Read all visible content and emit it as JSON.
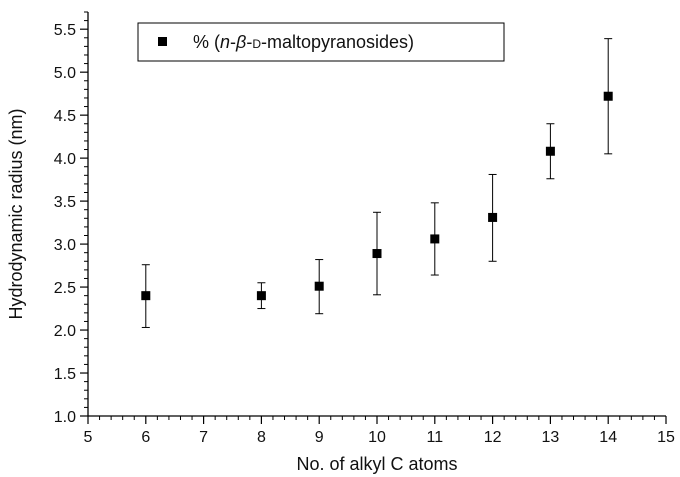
{
  "chart_data": {
    "type": "scatter",
    "xlabel": "No. of alkyl C atoms",
    "ylabel": "Hydrodynamic radius (nm)",
    "xlim": [
      5,
      15
    ],
    "ylim": [
      1.0,
      5.7
    ],
    "xticks": [
      "5",
      "6",
      "7",
      "8",
      "9",
      "10",
      "11",
      "12",
      "13",
      "14",
      "15"
    ],
    "yticks": [
      "1.0",
      "1.5",
      "2.0",
      "2.5",
      "3.0",
      "3.5",
      "4.0",
      "4.5",
      "5.0",
      "5.5"
    ],
    "x_minor_step": 0.2,
    "y_minor_step": 0.1,
    "grid": false,
    "legend_position": "top-left",
    "marker": "filled-square",
    "color": "#000000",
    "series": [
      {
        "name": "% (n-β-D-maltopyranosides)",
        "legend_parts": [
          {
            "text": "% (",
            "style": "normal"
          },
          {
            "text": "n",
            "style": "italic"
          },
          {
            "text": "-",
            "style": "normal"
          },
          {
            "text": "β",
            "style": "italic"
          },
          {
            "text": "-",
            "style": "normal"
          },
          {
            "text": "D",
            "style": "smallcaps"
          },
          {
            "text": "-maltopyranosides)",
            "style": "normal"
          }
        ],
        "points": [
          {
            "x": 6,
            "y": 2.4,
            "err_low": 2.03,
            "err_high": 2.76
          },
          {
            "x": 8,
            "y": 2.4,
            "err_low": 2.25,
            "err_high": 2.55
          },
          {
            "x": 9,
            "y": 2.51,
            "err_low": 2.19,
            "err_high": 2.82
          },
          {
            "x": 10,
            "y": 2.89,
            "err_low": 2.41,
            "err_high": 3.37
          },
          {
            "x": 11,
            "y": 3.06,
            "err_low": 2.64,
            "err_high": 3.48
          },
          {
            "x": 12,
            "y": 3.31,
            "err_low": 2.8,
            "err_high": 3.81
          },
          {
            "x": 13,
            "y": 4.08,
            "err_low": 3.76,
            "err_high": 4.4
          },
          {
            "x": 14,
            "y": 4.72,
            "err_low": 4.05,
            "err_high": 5.39
          }
        ]
      }
    ]
  }
}
